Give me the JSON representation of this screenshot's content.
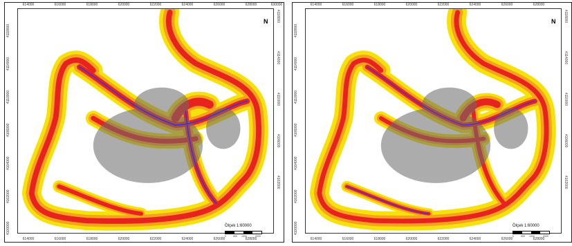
{
  "panels": [
    {
      "x_ticks": [
        "614000",
        "616000",
        "618000",
        "620000",
        "622000",
        "624000",
        "626000",
        "628000",
        "630000"
      ],
      "y_ticks": [
        "4118000",
        "4116000",
        "4114000",
        "4112000",
        "4110000",
        "4108000",
        "4106000",
        "4104000",
        "4102000",
        "4100000"
      ],
      "north_label": "N",
      "scale_label": "Ölçek 1:60000",
      "scale_ticks": [
        "0",
        "500",
        "1000",
        "2000"
      ]
    },
    {
      "x_ticks": [
        "614000",
        "616000",
        "618000",
        "620000",
        "622000",
        "624000",
        "626000",
        "628000",
        "630000"
      ],
      "y_ticks": [
        "4118000",
        "4116000",
        "4114000",
        "4112000",
        "4110000",
        "4108000",
        "4106000",
        "4104000",
        "4102000",
        "4100000"
      ],
      "north_label": "N",
      "scale_label": "Ölçek 1:60000",
      "scale_ticks": [
        "0",
        "500",
        "1000",
        "2000"
      ]
    }
  ],
  "colors": {
    "outer_buffer": "#f5e20c",
    "mid_buffer": "#f7a21b",
    "inner_buffer": "#e8231f",
    "road": "#3b35d6",
    "urban": "#6a6a6a"
  }
}
